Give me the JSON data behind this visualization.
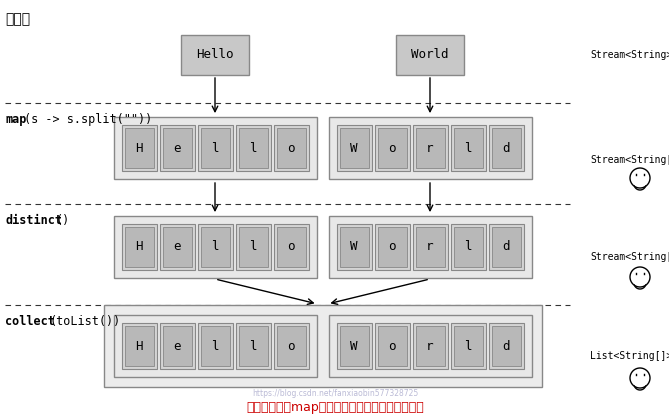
{
  "title_top": "单词流",
  "title_bottom": "不正确地使用map找出单词列表中各不相同的字符",
  "bg_color": "#ffffff",
  "row1_labels": [
    "Hello",
    "World"
  ],
  "hello_chars": [
    "H",
    "e",
    "l",
    "l",
    "o"
  ],
  "world_chars": [
    "W",
    "o",
    "r",
    "l",
    "d"
  ],
  "stream_labels": [
    "Stream<String>",
    "Stream<String[]>",
    "Stream<String[]>",
    "List<String[]>"
  ],
  "section_labels_bold": [
    "map",
    "distinct",
    "collect"
  ],
  "section_labels_rest": [
    "(s -> s.split(\"\"))",
    "()",
    "(toList())"
  ],
  "watermark": "https://blog.csdn.net/fanxiaobin577328725",
  "box_gray": "#c8c8c8",
  "inner_gray": "#b8b8b8",
  "outer_gray": "#e0e0e0",
  "edge_color": "#888888"
}
